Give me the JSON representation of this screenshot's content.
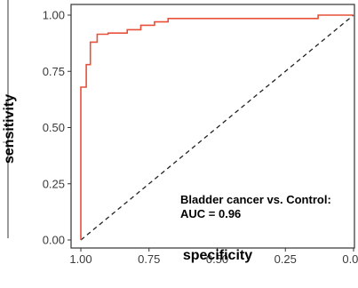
{
  "chart_data": {
    "type": "line",
    "xlabel": "specificity",
    "ylabel": "sensitivity",
    "xlim": [
      1.0,
      0.0
    ],
    "ylim": [
      0.0,
      1.0
    ],
    "x_tick_labels": [
      "1.00",
      "0.75",
      "0.50",
      "0.25",
      "0.00"
    ],
    "x_ticks": [
      1.0,
      0.75,
      0.5,
      0.25,
      0.0
    ],
    "y_tick_labels": [
      "0.00",
      "0.25",
      "0.50",
      "0.75",
      "1.00"
    ],
    "y_ticks": [
      0.0,
      0.25,
      0.5,
      0.75,
      1.0
    ],
    "grid": false,
    "series": [
      {
        "color": "#e8503a",
        "x": [
          1.0,
          1.0,
          0.98,
          0.98,
          0.965,
          0.965,
          0.94,
          0.94,
          0.9,
          0.9,
          0.83,
          0.83,
          0.78,
          0.78,
          0.73,
          0.73,
          0.68,
          0.68,
          0.13,
          0.13,
          0.0
        ],
        "y": [
          0.0,
          0.68,
          0.68,
          0.78,
          0.78,
          0.88,
          0.88,
          0.915,
          0.915,
          0.92,
          0.92,
          0.935,
          0.935,
          0.955,
          0.955,
          0.97,
          0.97,
          0.985,
          0.985,
          1.0,
          1.0
        ]
      }
    ],
    "reference_line": {
      "x": [
        1.0,
        0.0
      ],
      "y": [
        0.0,
        1.0
      ],
      "style": "dashed",
      "color": "#222222"
    },
    "annotations": [
      "Bladder cancer vs. Control:",
      "AUC = 0.96"
    ]
  }
}
